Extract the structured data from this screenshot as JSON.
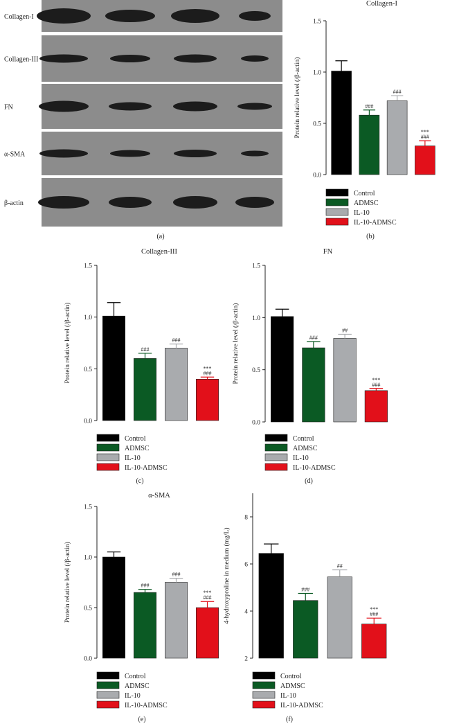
{
  "legend_labels": [
    "Control",
    "ADMSC",
    "IL-10",
    "IL-10-ADMSC"
  ],
  "colors": {
    "Control": "#000000",
    "ADMSC": "#0b5a24",
    "IL-10": "#a9abae",
    "IL-10-ADMSC": "#e2101a",
    "blot_bg": "#8c8c8c"
  },
  "blot": {
    "rows": [
      "Collagen-I",
      "Collagen-III",
      "FN",
      "α-SMA",
      "β-actin"
    ],
    "caption": "(a)"
  },
  "chart_data": [
    {
      "type": "bar",
      "panel": "b",
      "title": "Collagen-I",
      "caption": "(b)",
      "ylabel": "Protein relative level (/β-actin)",
      "ylim": [
        0,
        1.5
      ],
      "yticks": [
        "0.0",
        "0.5",
        "1.0",
        "1.5"
      ],
      "categories": [
        "Control",
        "ADMSC",
        "IL-10",
        "IL-10-ADMSC"
      ],
      "values": [
        1.01,
        0.58,
        0.72,
        0.28
      ],
      "errors": [
        0.1,
        0.05,
        0.05,
        0.05
      ],
      "annotations": [
        "",
        "###",
        "###",
        "***\n###"
      ]
    },
    {
      "type": "bar",
      "panel": "c",
      "title": "Collagen-III",
      "caption": "(c)",
      "ylabel": "Protein relative level (/β-actin)",
      "ylim": [
        0,
        1.5
      ],
      "yticks": [
        "0.0",
        "0.5",
        "1.0",
        "1.5"
      ],
      "categories": [
        "Control",
        "ADMSC",
        "IL-10",
        "IL-10-ADMSC"
      ],
      "values": [
        1.01,
        0.6,
        0.7,
        0.4
      ],
      "errors": [
        0.13,
        0.05,
        0.04,
        0.02
      ],
      "annotations": [
        "",
        "###",
        "###",
        "***\n###"
      ]
    },
    {
      "type": "bar",
      "panel": "d",
      "title": "FN",
      "caption": "(d)",
      "ylabel": "Protein relative level (/β-actin)",
      "ylim": [
        0,
        1.5
      ],
      "yticks": [
        "0.0",
        "0.5",
        "1.0",
        "1.5"
      ],
      "categories": [
        "Control",
        "ADMSC",
        "IL-10",
        "IL-10-ADMSC"
      ],
      "values": [
        1.01,
        0.71,
        0.8,
        0.3
      ],
      "errors": [
        0.07,
        0.06,
        0.04,
        0.02
      ],
      "annotations": [
        "",
        "###",
        "##",
        "***\n###"
      ]
    },
    {
      "type": "bar",
      "panel": "e",
      "title": "α-SMA",
      "caption": "(e)",
      "ylabel": "Protein relative level (/β-actin)",
      "ylim": [
        0,
        1.5
      ],
      "yticks": [
        "0.0",
        "0.5",
        "1.0",
        "1.5"
      ],
      "categories": [
        "Control",
        "ADMSC",
        "IL-10",
        "IL-10-ADMSC"
      ],
      "values": [
        1.0,
        0.65,
        0.75,
        0.5
      ],
      "errors": [
        0.05,
        0.03,
        0.04,
        0.06
      ],
      "annotations": [
        "",
        "###",
        "###",
        "***\n###"
      ]
    },
    {
      "type": "bar",
      "panel": "f",
      "title": "",
      "caption": "(f)",
      "ylabel": "4-hydroxyproline in medium (mg/L)",
      "ylim": [
        2,
        9
      ],
      "yticks": [
        "2",
        "4",
        "6",
        "8"
      ],
      "categories": [
        "Control",
        "ADMSC",
        "IL-10",
        "IL-10-ADMSC"
      ],
      "values": [
        6.45,
        4.45,
        5.45,
        3.45
      ],
      "errors": [
        0.4,
        0.3,
        0.3,
        0.25
      ],
      "annotations": [
        "",
        "###",
        "##",
        "***\n###"
      ]
    }
  ]
}
